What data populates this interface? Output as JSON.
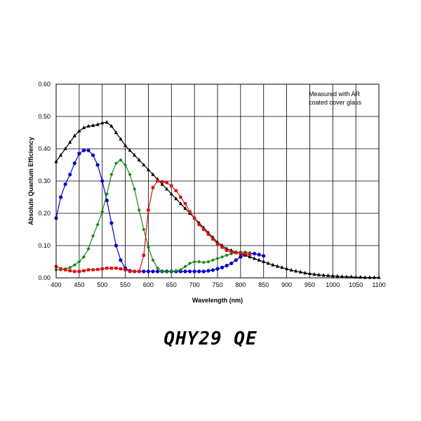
{
  "caption": "QHY29 QE",
  "chart_data": {
    "type": "line",
    "title": "",
    "xlabel": "Wavelength (nm)",
    "ylabel": "Absolute Quantum Efficiency",
    "xlim": [
      400,
      1100
    ],
    "ylim": [
      0,
      0.6
    ],
    "xticks": [
      "400",
      "450",
      "500",
      "550",
      "600",
      "650",
      "700",
      "750",
      "800",
      "850",
      "900",
      "950",
      "1000",
      "1050",
      "1100"
    ],
    "yticks": [
      "0.00",
      "0.10",
      "0.20",
      "0.30",
      "0.40",
      "0.50",
      "0.60"
    ],
    "grid": true,
    "annotation": [
      "Measured with AR",
      "coated cover glass"
    ],
    "series": [
      {
        "color": "#000000",
        "marker": "triangle",
        "x": [
          400,
          410,
          420,
          430,
          440,
          450,
          460,
          470,
          480,
          490,
          500,
          510,
          520,
          530,
          540,
          550,
          560,
          570,
          580,
          590,
          600,
          610,
          620,
          630,
          640,
          650,
          660,
          670,
          680,
          690,
          700,
          710,
          720,
          730,
          740,
          750,
          760,
          770,
          780,
          790,
          800,
          810,
          820,
          830,
          840,
          850,
          860,
          870,
          880,
          890,
          900,
          910,
          920,
          930,
          940,
          950,
          960,
          970,
          980,
          990,
          1000,
          1010,
          1020,
          1030,
          1040,
          1050,
          1060,
          1070,
          1080,
          1090,
          1100
        ],
        "values": [
          0.36,
          0.38,
          0.4,
          0.42,
          0.44,
          0.455,
          0.465,
          0.47,
          0.472,
          0.475,
          0.48,
          0.482,
          0.47,
          0.45,
          0.43,
          0.41,
          0.395,
          0.38,
          0.365,
          0.35,
          0.335,
          0.32,
          0.305,
          0.29,
          0.275,
          0.26,
          0.245,
          0.23,
          0.215,
          0.2,
          0.185,
          0.17,
          0.155,
          0.14,
          0.125,
          0.11,
          0.1,
          0.09,
          0.085,
          0.08,
          0.075,
          0.07,
          0.065,
          0.06,
          0.055,
          0.05,
          0.045,
          0.04,
          0.036,
          0.032,
          0.028,
          0.024,
          0.021,
          0.018,
          0.015,
          0.013,
          0.011,
          0.009,
          0.008,
          0.007,
          0.006,
          0.005,
          0.004,
          0.003,
          0.003,
          0.002,
          0.002,
          0.001,
          0.001,
          0.001,
          0.001
        ]
      },
      {
        "color": "#0000cc",
        "marker": "circle",
        "x": [
          400,
          410,
          420,
          430,
          440,
          450,
          460,
          470,
          480,
          490,
          500,
          510,
          520,
          530,
          540,
          550,
          560,
          570,
          580,
          590,
          600,
          610,
          620,
          630,
          640,
          650,
          660,
          670,
          680,
          690,
          700,
          710,
          720,
          730,
          740,
          750,
          760,
          770,
          780,
          790,
          800,
          810,
          820,
          830,
          840,
          850
        ],
        "values": [
          0.185,
          0.25,
          0.29,
          0.32,
          0.355,
          0.385,
          0.395,
          0.395,
          0.38,
          0.35,
          0.3,
          0.24,
          0.17,
          0.1,
          0.055,
          0.03,
          0.022,
          0.02,
          0.02,
          0.02,
          0.02,
          0.02,
          0.02,
          0.02,
          0.02,
          0.02,
          0.02,
          0.02,
          0.02,
          0.02,
          0.02,
          0.02,
          0.02,
          0.022,
          0.024,
          0.028,
          0.032,
          0.038,
          0.045,
          0.055,
          0.065,
          0.072,
          0.075,
          0.075,
          0.072,
          0.068
        ]
      },
      {
        "color": "#118811",
        "marker": "diamond",
        "x": [
          400,
          410,
          420,
          430,
          440,
          450,
          460,
          470,
          480,
          490,
          500,
          510,
          520,
          530,
          540,
          550,
          560,
          570,
          580,
          590,
          600,
          610,
          620,
          630,
          640,
          650,
          660,
          670,
          680,
          690,
          700,
          710,
          720,
          730,
          740,
          750,
          760,
          770,
          780,
          790,
          800,
          810,
          820
        ],
        "values": [
          0.025,
          0.025,
          0.028,
          0.032,
          0.04,
          0.05,
          0.065,
          0.09,
          0.13,
          0.165,
          0.205,
          0.26,
          0.32,
          0.355,
          0.365,
          0.35,
          0.32,
          0.275,
          0.21,
          0.15,
          0.095,
          0.055,
          0.03,
          0.02,
          0.018,
          0.02,
          0.022,
          0.025,
          0.035,
          0.045,
          0.05,
          0.05,
          0.048,
          0.05,
          0.055,
          0.06,
          0.065,
          0.07,
          0.075,
          0.078,
          0.08,
          0.08,
          0.078
        ]
      },
      {
        "color": "#dd1111",
        "marker": "square",
        "x": [
          400,
          410,
          420,
          430,
          440,
          450,
          460,
          470,
          480,
          490,
          500,
          510,
          520,
          530,
          540,
          550,
          560,
          570,
          580,
          590,
          600,
          610,
          620,
          630,
          640,
          650,
          660,
          670,
          680,
          690,
          700,
          710,
          720,
          730,
          740,
          750,
          760,
          770,
          780,
          790,
          800,
          810,
          820
        ],
        "values": [
          0.035,
          0.028,
          0.025,
          0.022,
          0.02,
          0.02,
          0.022,
          0.025,
          0.025,
          0.026,
          0.028,
          0.03,
          0.03,
          0.03,
          0.028,
          0.025,
          0.02,
          0.02,
          0.02,
          0.07,
          0.21,
          0.28,
          0.3,
          0.298,
          0.295,
          0.285,
          0.27,
          0.25,
          0.23,
          0.205,
          0.185,
          0.165,
          0.15,
          0.135,
          0.12,
          0.105,
          0.095,
          0.085,
          0.08,
          0.078,
          0.077,
          0.075,
          0.072
        ]
      }
    ]
  }
}
